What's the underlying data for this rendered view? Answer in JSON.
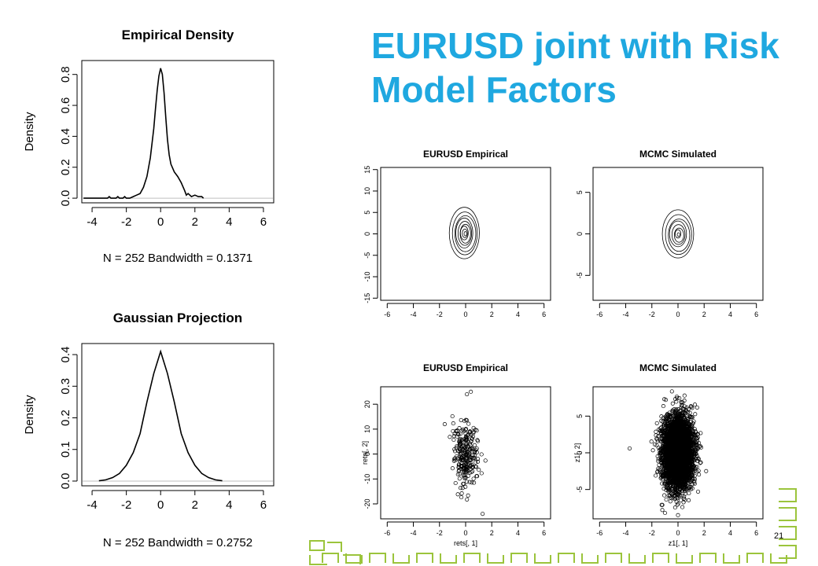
{
  "slide": {
    "title": "EURUSD joint with Risk Model Factors",
    "page_number": "21",
    "colors": {
      "title": "#1fa8e0",
      "decoration": "#9bc43c",
      "axis": "#000000",
      "baseline": "#bfbfbf"
    }
  },
  "chart_data": [
    {
      "type": "line",
      "title": "Empirical Density",
      "xlabel": "N = 252   Bandwidth = 0.1371",
      "ylabel": "Density",
      "xlim": [
        -4.6,
        6.6
      ],
      "ylim": [
        -0.03,
        0.89
      ],
      "xticks": [
        -4,
        -2,
        0,
        2,
        4,
        6
      ],
      "yticks": [
        0.0,
        0.2,
        0.4,
        0.6,
        0.8
      ],
      "ytick_labels": [
        "0.0",
        "0.2",
        "0.4",
        "0.6",
        "0.8"
      ],
      "baseline": 0,
      "x": [
        -4.5,
        -3.1,
        -3.0,
        -2.9,
        -2.6,
        -2.5,
        -2.4,
        -2.2,
        -2.1,
        -2.0,
        -1.8,
        -1.6,
        -1.4,
        -1.2,
        -1.0,
        -0.8,
        -0.6,
        -0.4,
        -0.3,
        -0.2,
        -0.1,
        0.0,
        0.1,
        0.2,
        0.3,
        0.4,
        0.5,
        0.6,
        0.8,
        1.0,
        1.2,
        1.4,
        1.5,
        1.6,
        1.8,
        2.0,
        2.2,
        2.4,
        2.5
      ],
      "y": [
        0.0,
        0.0,
        0.01,
        0.0,
        0.0,
        0.01,
        0.0,
        0.0,
        0.01,
        0.0,
        0.0,
        0.01,
        0.02,
        0.03,
        0.07,
        0.14,
        0.26,
        0.45,
        0.58,
        0.7,
        0.79,
        0.84,
        0.8,
        0.68,
        0.52,
        0.38,
        0.28,
        0.22,
        0.17,
        0.14,
        0.1,
        0.05,
        0.02,
        0.03,
        0.01,
        0.02,
        0.01,
        0.01,
        0.0
      ]
    },
    {
      "type": "line",
      "title": "Gaussian Projection",
      "xlabel": "N = 252   Bandwidth = 0.2752",
      "ylabel": "Density",
      "xlim": [
        -4.6,
        6.6
      ],
      "ylim": [
        -0.015,
        0.435
      ],
      "xticks": [
        -4,
        -2,
        0,
        2,
        4,
        6
      ],
      "yticks": [
        0.0,
        0.1,
        0.2,
        0.3,
        0.4
      ],
      "ytick_labels": [
        "0.0",
        "0.1",
        "0.2",
        "0.3",
        "0.4"
      ],
      "baseline": 0,
      "x": [
        -3.6,
        -3.2,
        -2.8,
        -2.4,
        -2.0,
        -1.6,
        -1.2,
        -0.8,
        -0.4,
        0.0,
        0.4,
        0.8,
        1.2,
        1.6,
        2.0,
        2.4,
        2.8,
        3.2,
        3.6
      ],
      "y": [
        0.001,
        0.004,
        0.011,
        0.024,
        0.05,
        0.09,
        0.15,
        0.25,
        0.34,
        0.41,
        0.34,
        0.25,
        0.15,
        0.09,
        0.05,
        0.024,
        0.011,
        0.004,
        0.001
      ]
    },
    {
      "type": "contour",
      "title": "EURUSD Empirical",
      "xlim": [
        -6.5,
        6.5
      ],
      "ylim": [
        -15.5,
        15.5
      ],
      "xticks": [
        -6,
        -4,
        -2,
        0,
        2,
        4,
        6
      ],
      "yticks": [
        -15,
        -10,
        -5,
        0,
        5,
        10,
        15
      ],
      "center": [
        -0.1,
        0.2
      ],
      "level_radii": [
        [
          1.15,
          6.0
        ],
        [
          0.95,
          5.0
        ],
        [
          0.8,
          4.2
        ],
        [
          0.65,
          3.5
        ],
        [
          0.52,
          2.8
        ],
        [
          0.4,
          2.2
        ],
        [
          0.3,
          1.6
        ],
        [
          0.2,
          1.0
        ],
        [
          0.1,
          0.5
        ]
      ]
    },
    {
      "type": "contour",
      "title": "MCMC Simulated",
      "xlim": [
        -6.5,
        6.5
      ],
      "ylim": [
        -8,
        8
      ],
      "xticks": [
        -6,
        -4,
        -2,
        0,
        2,
        4,
        6
      ],
      "yticks": [
        -5,
        0,
        5
      ],
      "center": [
        0.0,
        0.0
      ],
      "level_radii": [
        [
          1.2,
          2.9
        ],
        [
          1.0,
          2.4
        ],
        [
          0.82,
          1.95
        ],
        [
          0.65,
          1.55
        ],
        [
          0.5,
          1.2
        ],
        [
          0.36,
          0.85
        ],
        [
          0.22,
          0.5
        ],
        [
          0.1,
          0.22
        ]
      ]
    },
    {
      "type": "scatter",
      "title": "EURUSD Empirical",
      "xlabel": "rets[, 1]",
      "ylabel": "rets[, 2]",
      "xlim": [
        -6.5,
        6.5
      ],
      "ylim": [
        -26,
        27
      ],
      "xticks": [
        -6,
        -4,
        -2,
        0,
        2,
        4,
        6
      ],
      "yticks": [
        -20,
        -10,
        0,
        10,
        20
      ],
      "n_points": 252,
      "x_sd": 0.45,
      "y_sd": 6.5,
      "outliers": [
        [
          1.3,
          -24
        ],
        [
          0.4,
          25
        ],
        [
          0.1,
          24
        ],
        [
          -1.6,
          12
        ]
      ]
    },
    {
      "type": "scatter",
      "title": "MCMC Simulated",
      "xlabel": "z1[, 1]",
      "ylabel": "z1[, 2]",
      "xlim": [
        -6.5,
        6.5
      ],
      "ylim": [
        -9,
        9
      ],
      "xticks": [
        -6,
        -4,
        -2,
        0,
        2,
        4,
        6
      ],
      "yticks": [
        -5,
        0,
        5
      ],
      "n_points": 5000,
      "x_sd": 0.55,
      "y_sd": 2.3,
      "outliers": [
        [
          -3.7,
          0.6
        ],
        [
          -1.2,
          -7.8
        ],
        [
          0.0,
          -8.5
        ],
        [
          0.5,
          7.8
        ]
      ]
    }
  ]
}
